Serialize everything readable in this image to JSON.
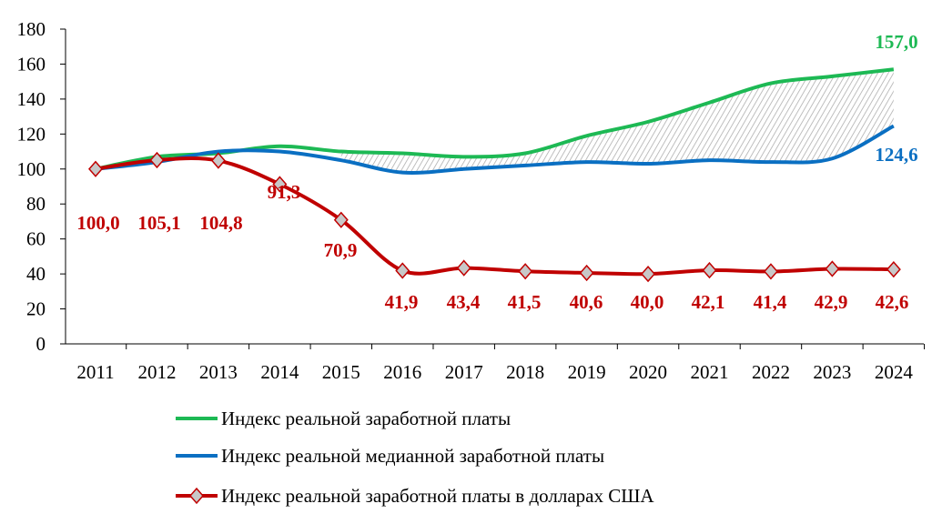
{
  "chart_data": {
    "type": "line",
    "x": [
      2011,
      2012,
      2013,
      2014,
      2015,
      2016,
      2017,
      2018,
      2019,
      2020,
      2021,
      2022,
      2023,
      2024
    ],
    "ylim": [
      0,
      180
    ],
    "yticks": [
      0,
      20,
      40,
      60,
      80,
      100,
      120,
      140,
      160,
      180
    ],
    "grid": false,
    "legend_placement": "bottom",
    "series": [
      {
        "name": "Индекс реальной заработной платы",
        "color": "#1db954",
        "values": [
          100,
          107,
          109,
          113,
          110,
          109,
          107,
          109,
          119,
          127,
          138,
          149,
          153,
          157.0
        ],
        "end_label": "157,0"
      },
      {
        "name": "Индекс реальной медианной заработной платы",
        "color": "#0a6fc2",
        "values": [
          100,
          104,
          110,
          110,
          105,
          98,
          100,
          102,
          104,
          103,
          105,
          104,
          106,
          124.6
        ],
        "end_label": "124,6"
      },
      {
        "name": "Индекс реальной заработной платы в долларах США",
        "color": "#c00000",
        "marker": "diamond",
        "marker_fill": "#c8c8c8",
        "values": [
          100.0,
          105.1,
          104.8,
          91.3,
          70.9,
          41.9,
          43.4,
          41.5,
          40.6,
          40.0,
          42.1,
          41.4,
          42.9,
          42.6
        ],
        "labels": [
          "100,0",
          "105,1",
          "104,8",
          "91,3",
          "70,9",
          "41,9",
          "43,4",
          "41,5",
          "40,6",
          "40,0",
          "42,1",
          "41,4",
          "42,9",
          "42,6"
        ]
      }
    ],
    "shaded_area": "hatched area between series 1 and series 2"
  }
}
